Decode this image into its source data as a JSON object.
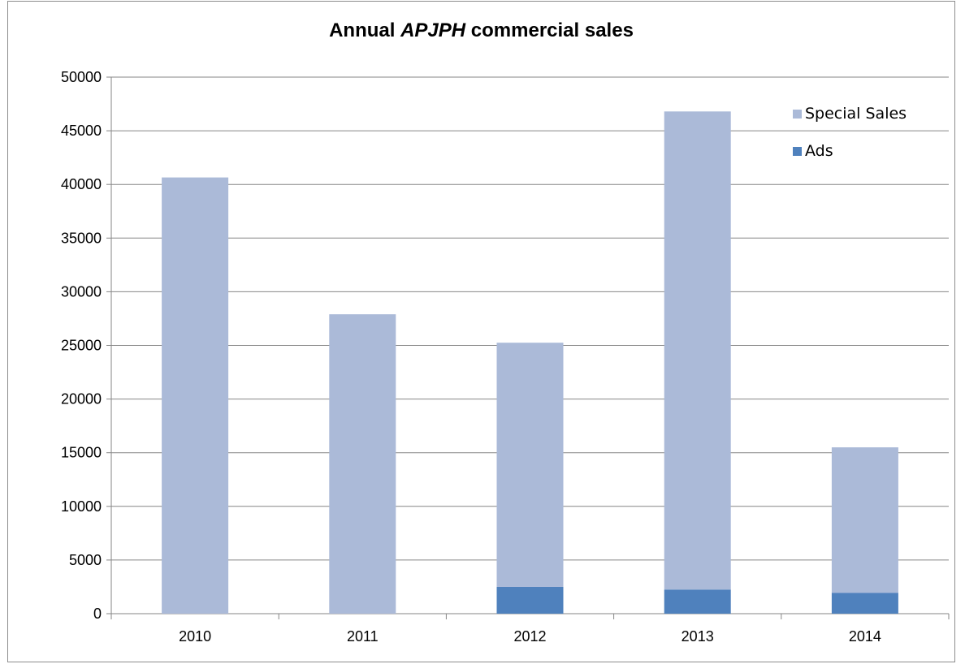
{
  "chart_data": {
    "type": "bar",
    "stacked": true,
    "title_pre": "Annual ",
    "title_em": "APJPH",
    "title_post": " commercial sales",
    "categories": [
      "2010",
      "2011",
      "2012",
      "2013",
      "2014"
    ],
    "series": [
      {
        "name": "Ads",
        "values": [
          0,
          0,
          2500,
          2250,
          1950
        ],
        "color": "#4f81bd"
      },
      {
        "name": "Special Sales",
        "values": [
          40650,
          27900,
          22750,
          44550,
          13550
        ],
        "color": "#abbad8"
      }
    ],
    "ylim": [
      0,
      50000
    ],
    "yticks": [
      "0",
      "5000",
      "10000",
      "15000",
      "20000",
      "25000",
      "30000",
      "35000",
      "40000",
      "45000",
      "50000"
    ],
    "grid": true,
    "legend_position": "top-right",
    "legend": [
      "Special Sales",
      "Ads"
    ]
  }
}
